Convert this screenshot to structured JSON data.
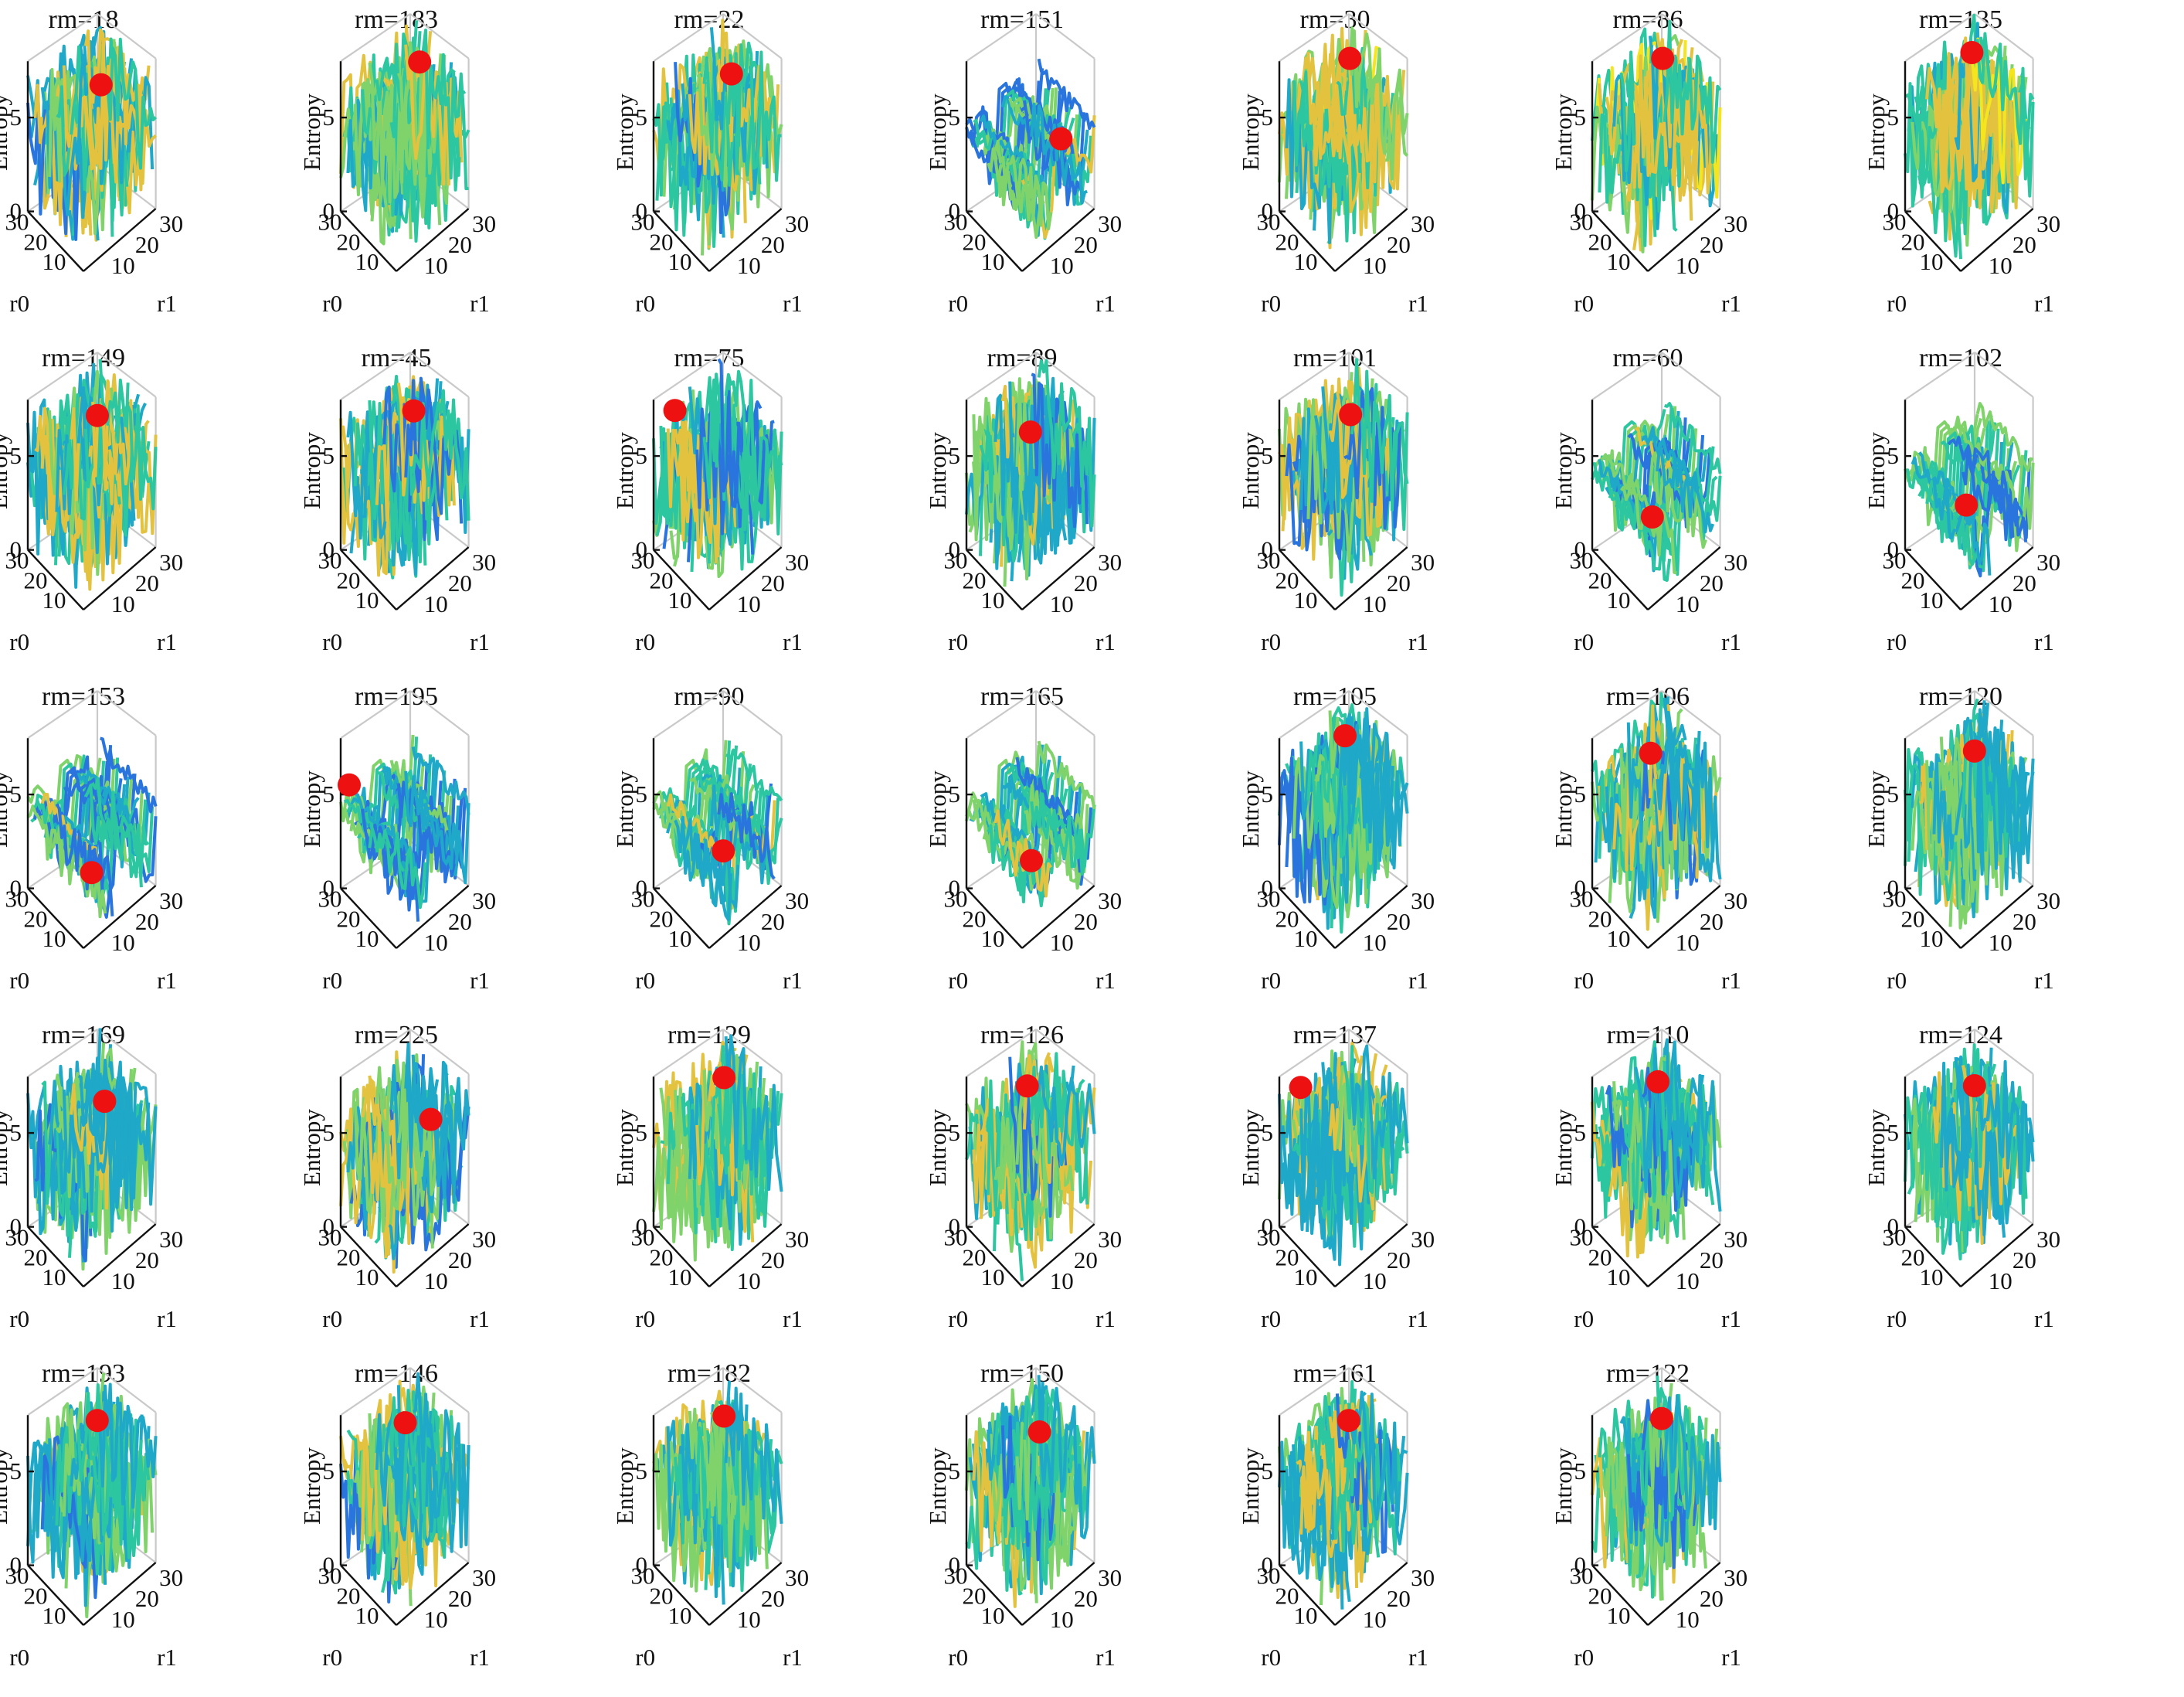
{
  "figure": {
    "colors": {
      "marker": "#ee1111",
      "colormap": [
        "#3b0f8c",
        "#2f3fd0",
        "#2a75dd",
        "#1fa8c8",
        "#2cc6a0",
        "#7fd36a",
        "#e3c23f",
        "#f4e51e"
      ]
    },
    "axis_labels": {
      "z": "Entropy",
      "r0": "r0",
      "r1": "r1"
    }
  },
  "chart_data": [
    {
      "type": "surface3d",
      "title": "rm=18",
      "zticks": [
        "0",
        "5"
      ],
      "r0_ticks": [
        "30",
        "20",
        "10"
      ],
      "r1_ticks": [
        "10",
        "20",
        "30"
      ],
      "pattern": "spiky",
      "level": 0.62,
      "marker": {
        "r0": 10,
        "r1": 15,
        "entropy": 7.2
      }
    },
    {
      "type": "surface3d",
      "title": "rm=183",
      "zticks": [
        "0",
        "5"
      ],
      "r0_ticks": [
        "30",
        "20",
        "10"
      ],
      "r1_ticks": [
        "10",
        "20",
        "30"
      ],
      "pattern": "spiky",
      "level": 0.62,
      "marker": {
        "r0": 16,
        "r1": 22,
        "entropy": 7.0
      }
    },
    {
      "type": "surface3d",
      "title": "rm=22",
      "zticks": [
        "0",
        "5"
      ],
      "r0_ticks": [
        "30",
        "20",
        "10"
      ],
      "r1_ticks": [
        "10",
        "20",
        "30"
      ],
      "pattern": "spiky",
      "level": 0.58,
      "marker": {
        "r0": 14,
        "r1": 20,
        "entropy": 6.8
      }
    },
    {
      "type": "surface3d",
      "title": "rm=151",
      "zticks": [
        "0",
        "5"
      ],
      "r0_ticks": [
        "30",
        "20",
        "10"
      ],
      "r1_ticks": [
        "10",
        "20",
        "30"
      ],
      "pattern": "ridges",
      "level": 0.4,
      "marker": {
        "r0": 5,
        "r1": 20,
        "entropy": 4.3
      }
    },
    {
      "type": "surface3d",
      "title": "rm=30",
      "zticks": [
        "0",
        "5"
      ],
      "r0_ticks": [
        "30",
        "20",
        "10"
      ],
      "r1_ticks": [
        "10",
        "20",
        "30"
      ],
      "pattern": "spiky",
      "level": 0.72,
      "marker": {
        "r0": 18,
        "r1": 20,
        "entropy": 7.2
      }
    },
    {
      "type": "surface3d",
      "title": "rm=86",
      "zticks": [
        "0",
        "5"
      ],
      "r0_ticks": [
        "30",
        "20",
        "10"
      ],
      "r1_ticks": [
        "10",
        "20",
        "30"
      ],
      "pattern": "spiky",
      "level": 0.72,
      "marker": {
        "r0": 18,
        "r1": 20,
        "entropy": 7.2
      }
    },
    {
      "type": "surface3d",
      "title": "rm=135",
      "zticks": [
        "0",
        "5"
      ],
      "r0_ticks": [
        "30",
        "20",
        "10"
      ],
      "r1_ticks": [
        "10",
        "20",
        "30"
      ],
      "pattern": "spiky",
      "level": 0.72,
      "marker": {
        "r0": 20,
        "r1": 20,
        "entropy": 7.3
      }
    },
    {
      "type": "surface3d",
      "title": "rm=149",
      "zticks": [
        "0",
        "5"
      ],
      "r0_ticks": [
        "30",
        "20",
        "10"
      ],
      "r1_ticks": [
        "10",
        "20",
        "30"
      ],
      "pattern": "spiky",
      "level": 0.66,
      "marker": {
        "r0": 12,
        "r1": 15,
        "entropy": 7.4
      }
    },
    {
      "type": "surface3d",
      "title": "rm=45",
      "zticks": [
        "0",
        "5"
      ],
      "r0_ticks": [
        "30",
        "20",
        "10"
      ],
      "r1_ticks": [
        "10",
        "20",
        "30"
      ],
      "pattern": "spiky",
      "level": 0.62,
      "marker": {
        "r0": 14,
        "r1": 18,
        "entropy": 7.1
      }
    },
    {
      "type": "surface3d",
      "title": "rm=75",
      "zticks": [
        "0",
        "5"
      ],
      "r0_ticks": [
        "30",
        "20",
        "10"
      ],
      "r1_ticks": [
        "10",
        "20",
        "30"
      ],
      "pattern": "spiky-dark",
      "level": 0.5,
      "marker": {
        "r0": 25,
        "r1": 5,
        "entropy": 7.4
      }
    },
    {
      "type": "surface3d",
      "title": "rm=89",
      "zticks": [
        "0",
        "5"
      ],
      "r0_ticks": [
        "30",
        "20",
        "10"
      ],
      "r1_ticks": [
        "10",
        "20",
        "30"
      ],
      "pattern": "spiky",
      "level": 0.6,
      "marker": {
        "r0": 15,
        "r1": 15,
        "entropy": 6.2
      }
    },
    {
      "type": "surface3d",
      "title": "rm=101",
      "zticks": [
        "0",
        "5"
      ],
      "r0_ticks": [
        "30",
        "20",
        "10"
      ],
      "r1_ticks": [
        "10",
        "20",
        "30"
      ],
      "pattern": "spiky",
      "level": 0.6,
      "marker": {
        "r0": 15,
        "r1": 18,
        "entropy": 6.8
      }
    },
    {
      "type": "surface3d",
      "title": "rm=60",
      "zticks": [
        "0",
        "5"
      ],
      "r0_ticks": [
        "30",
        "20",
        "10"
      ],
      "r1_ticks": [
        "10",
        "20",
        "30"
      ],
      "pattern": "ridges",
      "level": 0.4,
      "marker": {
        "r0": 8,
        "r1": 8,
        "entropy": 3.2
      }
    },
    {
      "type": "surface3d",
      "title": "rm=102",
      "zticks": [
        "0",
        "5"
      ],
      "r0_ticks": [
        "30",
        "20",
        "10"
      ],
      "r1_ticks": [
        "10",
        "20",
        "30"
      ],
      "pattern": "ridges",
      "level": 0.4,
      "marker": {
        "r0": 10,
        "r1": 10,
        "entropy": 3.4
      }
    },
    {
      "type": "surface3d",
      "title": "rm=153",
      "zticks": [
        "0",
        "5"
      ],
      "r0_ticks": [
        "30",
        "20",
        "10"
      ],
      "r1_ticks": [
        "10",
        "20",
        "30"
      ],
      "pattern": "ridges",
      "level": 0.4,
      "marker": {
        "r0": 6,
        "r1": 8,
        "entropy": 2.5
      }
    },
    {
      "type": "surface3d",
      "title": "rm=195",
      "zticks": [
        "0",
        "5"
      ],
      "r0_ticks": [
        "30",
        "20",
        "10"
      ],
      "r1_ticks": [
        "10",
        "20",
        "30"
      ],
      "pattern": "ridges",
      "level": 0.38,
      "marker": {
        "r0": 28,
        "r1": 2,
        "entropy": 5.5
      }
    },
    {
      "type": "surface3d",
      "title": "rm=90",
      "zticks": [
        "0",
        "5"
      ],
      "r0_ticks": [
        "30",
        "20",
        "10"
      ],
      "r1_ticks": [
        "10",
        "20",
        "30"
      ],
      "pattern": "ridges",
      "level": 0.42,
      "marker": {
        "r0": 8,
        "r1": 12,
        "entropy": 3.0
      }
    },
    {
      "type": "surface3d",
      "title": "rm=165",
      "zticks": [
        "0",
        "5"
      ],
      "r0_ticks": [
        "30",
        "20",
        "10"
      ],
      "r1_ticks": [
        "10",
        "20",
        "30"
      ],
      "pattern": "ridges",
      "level": 0.4,
      "marker": {
        "r0": 8,
        "r1": 10,
        "entropy": 2.7
      }
    },
    {
      "type": "surface3d",
      "title": "rm=105",
      "zticks": [
        "0",
        "5"
      ],
      "r0_ticks": [
        "30",
        "20",
        "10"
      ],
      "r1_ticks": [
        "10",
        "20",
        "30"
      ],
      "pattern": "spiky",
      "level": 0.5,
      "marker": {
        "r0": 18,
        "r1": 18,
        "entropy": 7.4
      }
    },
    {
      "type": "surface3d",
      "title": "rm=106",
      "zticks": [
        "0",
        "5"
      ],
      "r0_ticks": [
        "30",
        "20",
        "10"
      ],
      "r1_ticks": [
        "10",
        "20",
        "30"
      ],
      "pattern": "spiky",
      "level": 0.58,
      "marker": {
        "r0": 18,
        "r1": 15,
        "entropy": 6.8
      }
    },
    {
      "type": "surface3d",
      "title": "rm=120",
      "zticks": [
        "0",
        "5"
      ],
      "r0_ticks": [
        "30",
        "20",
        "10"
      ],
      "r1_ticks": [
        "10",
        "20",
        "30"
      ],
      "pattern": "spiky",
      "level": 0.6,
      "marker": {
        "r0": 16,
        "r1": 18,
        "entropy": 6.8
      }
    },
    {
      "type": "surface3d",
      "title": "rm=169",
      "zticks": [
        "0",
        "5"
      ],
      "r0_ticks": [
        "30",
        "20",
        "10"
      ],
      "r1_ticks": [
        "10",
        "20",
        "30"
      ],
      "pattern": "spiky",
      "level": 0.62,
      "marker": {
        "r0": 12,
        "r1": 18,
        "entropy": 6.6
      }
    },
    {
      "type": "surface3d",
      "title": "rm=225",
      "zticks": [
        "0",
        "5"
      ],
      "r0_ticks": [
        "30",
        "20",
        "10"
      ],
      "r1_ticks": [
        "10",
        "20",
        "30"
      ],
      "pattern": "spiky-dark",
      "level": 0.45,
      "marker": {
        "r0": 10,
        "r1": 22,
        "entropy": 5.4
      }
    },
    {
      "type": "surface3d",
      "title": "rm=129",
      "zticks": [
        "0",
        "5"
      ],
      "r0_ticks": [
        "30",
        "20",
        "10"
      ],
      "r1_ticks": [
        "10",
        "20",
        "30"
      ],
      "pattern": "spiky",
      "level": 0.62,
      "marker": {
        "r0": 18,
        "r1": 20,
        "entropy": 7.0
      }
    },
    {
      "type": "surface3d",
      "title": "rm=126",
      "zticks": [
        "0",
        "5"
      ],
      "r0_ticks": [
        "30",
        "20",
        "10"
      ],
      "r1_ticks": [
        "10",
        "20",
        "30"
      ],
      "pattern": "spiky",
      "level": 0.6,
      "marker": {
        "r0": 18,
        "r1": 16,
        "entropy": 7.0
      }
    },
    {
      "type": "surface3d",
      "title": "rm=137",
      "zticks": [
        "0",
        "5"
      ],
      "r0_ticks": [
        "30",
        "20",
        "10"
      ],
      "r1_ticks": [
        "10",
        "20",
        "30"
      ],
      "pattern": "spiky",
      "level": 0.62,
      "marker": {
        "r0": 25,
        "r1": 5,
        "entropy": 7.4
      }
    },
    {
      "type": "surface3d",
      "title": "rm=110",
      "zticks": [
        "0",
        "5"
      ],
      "r0_ticks": [
        "30",
        "20",
        "10"
      ],
      "r1_ticks": [
        "10",
        "20",
        "30"
      ],
      "pattern": "spiky",
      "level": 0.6,
      "marker": {
        "r0": 18,
        "r1": 18,
        "entropy": 7.0
      }
    },
    {
      "type": "surface3d",
      "title": "rm=124",
      "zticks": [
        "0",
        "5"
      ],
      "r0_ticks": [
        "30",
        "20",
        "10"
      ],
      "r1_ticks": [
        "10",
        "20",
        "30"
      ],
      "pattern": "spiky",
      "level": 0.58,
      "marker": {
        "r0": 16,
        "r1": 18,
        "entropy": 7.0
      }
    },
    {
      "type": "surface3d",
      "title": "rm=193",
      "zticks": [
        "0",
        "5"
      ],
      "r0_ticks": [
        "30",
        "20",
        "10"
      ],
      "r1_ticks": [
        "10",
        "20",
        "30"
      ],
      "pattern": "spiky",
      "level": 0.62,
      "marker": {
        "r0": 16,
        "r1": 18,
        "entropy": 7.2
      }
    },
    {
      "type": "surface3d",
      "title": "rm=146",
      "zticks": [
        "0",
        "5"
      ],
      "r0_ticks": [
        "30",
        "20",
        "10"
      ],
      "r1_ticks": [
        "10",
        "20",
        "30"
      ],
      "pattern": "spiky",
      "level": 0.58,
      "marker": {
        "r0": 16,
        "r1": 16,
        "entropy": 7.3
      }
    },
    {
      "type": "surface3d",
      "title": "rm=182",
      "zticks": [
        "0",
        "5"
      ],
      "r0_ticks": [
        "30",
        "20",
        "10"
      ],
      "r1_ticks": [
        "10",
        "20",
        "30"
      ],
      "pattern": "spiky",
      "level": 0.6,
      "marker": {
        "r0": 18,
        "r1": 20,
        "entropy": 7.0
      }
    },
    {
      "type": "surface3d",
      "title": "rm=150",
      "zticks": [
        "0",
        "5"
      ],
      "r0_ticks": [
        "30",
        "20",
        "10"
      ],
      "r1_ticks": [
        "10",
        "20",
        "30"
      ],
      "pattern": "spiky",
      "level": 0.56,
      "marker": {
        "r0": 14,
        "r1": 18,
        "entropy": 6.8
      }
    },
    {
      "type": "surface3d",
      "title": "rm=161",
      "zticks": [
        "0",
        "5"
      ],
      "r0_ticks": [
        "30",
        "20",
        "10"
      ],
      "r1_ticks": [
        "10",
        "20",
        "30"
      ],
      "pattern": "spiky",
      "level": 0.56,
      "marker": {
        "r0": 16,
        "r1": 18,
        "entropy": 7.2
      }
    },
    {
      "type": "surface3d",
      "title": "rm=122",
      "zticks": [
        "0",
        "5"
      ],
      "r0_ticks": [
        "30",
        "20",
        "10"
      ],
      "r1_ticks": [
        "10",
        "20",
        "30"
      ],
      "pattern": "spiky",
      "level": 0.56,
      "marker": {
        "r0": 16,
        "r1": 18,
        "entropy": 7.3
      }
    }
  ]
}
